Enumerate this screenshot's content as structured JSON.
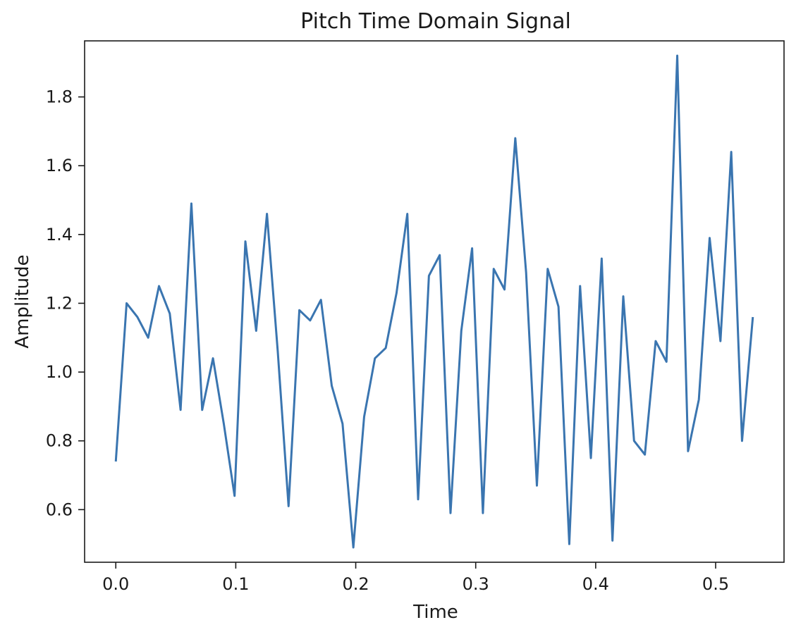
{
  "chart_data": {
    "type": "line",
    "title": "Pitch Time Domain Signal",
    "xlabel": "Time",
    "ylabel": "Amplitude",
    "xlim": [
      -0.026,
      0.557
    ],
    "ylim": [
      0.447,
      1.963
    ],
    "x_ticks": [
      {
        "value": 0.0,
        "label": "0.0"
      },
      {
        "value": 0.1,
        "label": "0.1"
      },
      {
        "value": 0.2,
        "label": "0.2"
      },
      {
        "value": 0.3,
        "label": "0.3"
      },
      {
        "value": 0.4,
        "label": "0.4"
      },
      {
        "value": 0.5,
        "label": "0.5"
      }
    ],
    "y_ticks": [
      {
        "value": 0.6,
        "label": "0.6"
      },
      {
        "value": 0.8,
        "label": "0.8"
      },
      {
        "value": 1.0,
        "label": "1.0"
      },
      {
        "value": 1.2,
        "label": "1.2"
      },
      {
        "value": 1.4,
        "label": "1.4"
      },
      {
        "value": 1.6,
        "label": "1.6"
      },
      {
        "value": 1.8,
        "label": "1.8"
      }
    ],
    "grid": false,
    "series": [
      {
        "color": "#3a75b0",
        "points": [
          [
            0.0,
            0.74
          ],
          [
            0.009,
            1.2
          ],
          [
            0.018,
            1.16
          ],
          [
            0.027,
            1.1
          ],
          [
            0.036,
            1.25
          ],
          [
            0.045,
            1.17
          ],
          [
            0.054,
            0.89
          ],
          [
            0.063,
            1.49
          ],
          [
            0.072,
            0.89
          ],
          [
            0.081,
            1.04
          ],
          [
            0.09,
            0.85
          ],
          [
            0.099,
            0.64
          ],
          [
            0.108,
            1.38
          ],
          [
            0.117,
            1.12
          ],
          [
            0.126,
            1.46
          ],
          [
            0.135,
            1.06
          ],
          [
            0.144,
            0.61
          ],
          [
            0.153,
            1.18
          ],
          [
            0.162,
            1.15
          ],
          [
            0.171,
            1.21
          ],
          [
            0.18,
            0.96
          ],
          [
            0.189,
            0.85
          ],
          [
            0.198,
            0.49
          ],
          [
            0.207,
            0.87
          ],
          [
            0.216,
            1.04
          ],
          [
            0.225,
            1.07
          ],
          [
            0.234,
            1.23
          ],
          [
            0.243,
            1.46
          ],
          [
            0.252,
            0.63
          ],
          [
            0.261,
            1.28
          ],
          [
            0.27,
            1.34
          ],
          [
            0.279,
            0.59
          ],
          [
            0.288,
            1.12
          ],
          [
            0.297,
            1.36
          ],
          [
            0.306,
            0.59
          ],
          [
            0.315,
            1.3
          ],
          [
            0.324,
            1.24
          ],
          [
            0.333,
            1.68
          ],
          [
            0.342,
            1.29
          ],
          [
            0.351,
            0.67
          ],
          [
            0.36,
            1.3
          ],
          [
            0.369,
            1.19
          ],
          [
            0.378,
            0.5
          ],
          [
            0.387,
            1.25
          ],
          [
            0.396,
            0.75
          ],
          [
            0.405,
            1.33
          ],
          [
            0.414,
            0.51
          ],
          [
            0.423,
            1.22
          ],
          [
            0.432,
            0.8
          ],
          [
            0.441,
            0.76
          ],
          [
            0.45,
            1.09
          ],
          [
            0.459,
            1.03
          ],
          [
            0.468,
            1.92
          ],
          [
            0.477,
            0.77
          ],
          [
            0.486,
            0.92
          ],
          [
            0.495,
            1.39
          ],
          [
            0.504,
            1.09
          ],
          [
            0.513,
            1.64
          ],
          [
            0.522,
            0.8
          ],
          [
            0.531,
            1.16
          ]
        ]
      }
    ]
  }
}
